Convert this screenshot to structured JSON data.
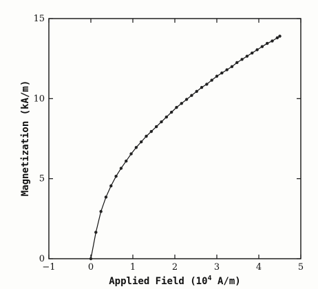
{
  "chart_data": {
    "type": "line",
    "title": "",
    "xlabel": "Applied Field (10",
    "xlabel_sup": "4",
    "xlabel_tail": " A/m)",
    "ylabel": "Magnetization (kA/m)",
    "xlim": [
      -1,
      5
    ],
    "ylim": [
      0,
      15
    ],
    "xticks": [
      -1,
      0,
      1,
      2,
      3,
      4,
      5
    ],
    "yticks": [
      0,
      5,
      10,
      15
    ],
    "grid": false,
    "series": [
      {
        "marker": "dot",
        "x": [
          0.0,
          0.12,
          0.24,
          0.36,
          0.48,
          0.6,
          0.72,
          0.84,
          0.96,
          1.08,
          1.2,
          1.32,
          1.44,
          1.56,
          1.68,
          1.8,
          1.92,
          2.04,
          2.16,
          2.28,
          2.4,
          2.52,
          2.64,
          2.76,
          2.88,
          3.0,
          3.12,
          3.24,
          3.36,
          3.48,
          3.6,
          3.72,
          3.84,
          3.96,
          4.08,
          4.2,
          4.32,
          4.44,
          4.5
        ],
        "y": [
          0.0,
          1.65,
          2.95,
          3.85,
          4.55,
          5.15,
          5.65,
          6.1,
          6.55,
          6.95,
          7.3,
          7.65,
          7.95,
          8.25,
          8.55,
          8.85,
          9.15,
          9.45,
          9.7,
          9.95,
          10.2,
          10.45,
          10.7,
          10.9,
          11.15,
          11.4,
          11.6,
          11.8,
          12.0,
          12.25,
          12.45,
          12.65,
          12.85,
          13.05,
          13.25,
          13.45,
          13.6,
          13.8,
          13.9
        ]
      }
    ]
  }
}
